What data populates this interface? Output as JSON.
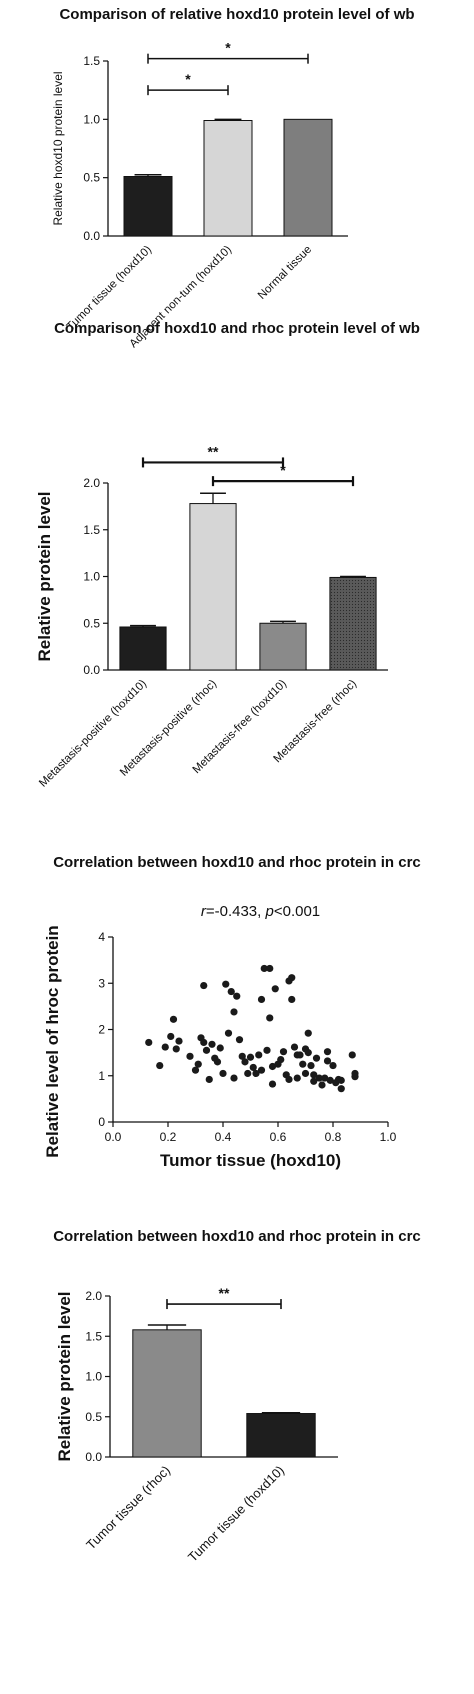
{
  "chart_data": [
    {
      "type": "bar",
      "title": "Comparison of relative hoxd10 protein level of wb",
      "ylabel": "Relative hoxd10 protein level",
      "xlabel": "",
      "ylim": [
        0,
        1.5
      ],
      "yticks": [
        0.0,
        0.5,
        1.0,
        1.5
      ],
      "categories": [
        "Tumor tissue (hoxd10)",
        "Adjacent non-tum (hoxd10)",
        "Normal tissue"
      ],
      "values": [
        0.51,
        0.99,
        1.0
      ],
      "errors": [
        0.015,
        0.01,
        0.0
      ],
      "colors": [
        "#1e1e1e",
        "#d6d6d6",
        "#7e7e7e"
      ],
      "significance": [
        {
          "from": 0,
          "to": 1,
          "y": 1.25,
          "label": "*"
        },
        {
          "from": 0,
          "to": 2,
          "y": 1.52,
          "label": "*"
        }
      ]
    },
    {
      "type": "bar",
      "title": "Comparison of  hoxd10 and rhoc protein level of wb",
      "ylabel": "Relative protein level",
      "xlabel": "",
      "ylim": [
        0,
        2.0
      ],
      "yticks": [
        0.0,
        0.5,
        1.0,
        1.5,
        2.0
      ],
      "categories": [
        "Metastasis-positive (hoxd10)",
        "Metastasis-positive (rhoc)",
        "Metastasis-free (hoxd10)",
        "Metastasis-free (rhoc)"
      ],
      "values": [
        0.46,
        1.78,
        0.5,
        0.99
      ],
      "errors": [
        0.015,
        0.11,
        0.02,
        0.01
      ],
      "colors": [
        "#1e1e1e",
        "#d6d6d6",
        "#8a8a8a",
        "#4a4a4a"
      ],
      "significance": [
        {
          "from": 0,
          "to": 2,
          "y": 2.22,
          "label": "**"
        },
        {
          "from": 1,
          "to": 3,
          "y": 2.02,
          "label": "*"
        }
      ]
    },
    {
      "type": "scatter",
      "title": "Correlation between hoxd10 and rhoc protein  in crc",
      "annotation_r": "r",
      "annotation_r_value": "=-0.433, ",
      "annotation_p": "p",
      "annotation_p_value": "<0.001",
      "xlabel": "Tumor tissue (hoxd10)",
      "ylabel": "Relative level of hroc protein",
      "xlim": [
        0,
        1.0
      ],
      "ylim": [
        0,
        4
      ],
      "xticks": [
        0.0,
        0.2,
        0.4,
        0.6,
        0.8,
        1.0
      ],
      "yticks": [
        0,
        1,
        2,
        3,
        4
      ],
      "points": [
        [
          0.13,
          1.72
        ],
        [
          0.17,
          1.22
        ],
        [
          0.19,
          1.62
        ],
        [
          0.21,
          1.85
        ],
        [
          0.22,
          2.22
        ],
        [
          0.23,
          1.58
        ],
        [
          0.24,
          1.75
        ],
        [
          0.28,
          1.42
        ],
        [
          0.3,
          1.12
        ],
        [
          0.31,
          1.25
        ],
        [
          0.32,
          1.82
        ],
        [
          0.33,
          2.95
        ],
        [
          0.33,
          1.72
        ],
        [
          0.34,
          1.55
        ],
        [
          0.35,
          0.92
        ],
        [
          0.36,
          1.68
        ],
        [
          0.37,
          1.38
        ],
        [
          0.38,
          1.3
        ],
        [
          0.39,
          1.6
        ],
        [
          0.4,
          1.05
        ],
        [
          0.41,
          2.98
        ],
        [
          0.42,
          1.92
        ],
        [
          0.43,
          2.82
        ],
        [
          0.44,
          0.95
        ],
        [
          0.44,
          2.38
        ],
        [
          0.45,
          2.72
        ],
        [
          0.46,
          1.78
        ],
        [
          0.47,
          1.42
        ],
        [
          0.48,
          1.3
        ],
        [
          0.49,
          1.05
        ],
        [
          0.5,
          1.4
        ],
        [
          0.51,
          1.18
        ],
        [
          0.52,
          1.05
        ],
        [
          0.53,
          1.45
        ],
        [
          0.54,
          2.65
        ],
        [
          0.54,
          1.12
        ],
        [
          0.55,
          3.32
        ],
        [
          0.56,
          1.55
        ],
        [
          0.57,
          3.32
        ],
        [
          0.57,
          2.25
        ],
        [
          0.58,
          1.2
        ],
        [
          0.58,
          0.82
        ],
        [
          0.59,
          2.88
        ],
        [
          0.6,
          1.25
        ],
        [
          0.61,
          1.35
        ],
        [
          0.62,
          1.52
        ],
        [
          0.63,
          1.02
        ],
        [
          0.64,
          3.05
        ],
        [
          0.64,
          0.92
        ],
        [
          0.65,
          3.12
        ],
        [
          0.65,
          2.65
        ],
        [
          0.66,
          1.62
        ],
        [
          0.67,
          1.45
        ],
        [
          0.67,
          0.95
        ],
        [
          0.68,
          1.45
        ],
        [
          0.69,
          1.25
        ],
        [
          0.7,
          1.58
        ],
        [
          0.7,
          1.05
        ],
        [
          0.71,
          1.5
        ],
        [
          0.71,
          1.92
        ],
        [
          0.72,
          1.22
        ],
        [
          0.73,
          1.02
        ],
        [
          0.73,
          0.88
        ],
        [
          0.74,
          1.38
        ],
        [
          0.75,
          0.95
        ],
        [
          0.76,
          0.8
        ],
        [
          0.77,
          0.95
        ],
        [
          0.78,
          1.32
        ],
        [
          0.78,
          1.52
        ],
        [
          0.79,
          0.9
        ],
        [
          0.8,
          1.22
        ],
        [
          0.81,
          0.85
        ],
        [
          0.82,
          0.92
        ],
        [
          0.83,
          0.72
        ],
        [
          0.83,
          0.9
        ],
        [
          0.87,
          1.45
        ],
        [
          0.88,
          1.05
        ],
        [
          0.88,
          0.98
        ]
      ]
    },
    {
      "type": "bar",
      "title": "Correlation between hoxd10 and rhoc protein  in crc",
      "ylabel": "Relative protein level",
      "xlabel": "",
      "ylim": [
        0,
        2.0
      ],
      "yticks": [
        0.0,
        0.5,
        1.0,
        1.5,
        2.0
      ],
      "categories": [
        "Tumor tissue (rhoc)",
        "Tumor tissue (hoxd10)"
      ],
      "values": [
        1.58,
        0.54
      ],
      "errors": [
        0.06,
        0.01
      ],
      "colors": [
        "#8a8a8a",
        "#1e1e1e"
      ],
      "significance": [
        {
          "from": 0,
          "to": 1,
          "y": 1.9,
          "label": "**"
        }
      ]
    }
  ]
}
